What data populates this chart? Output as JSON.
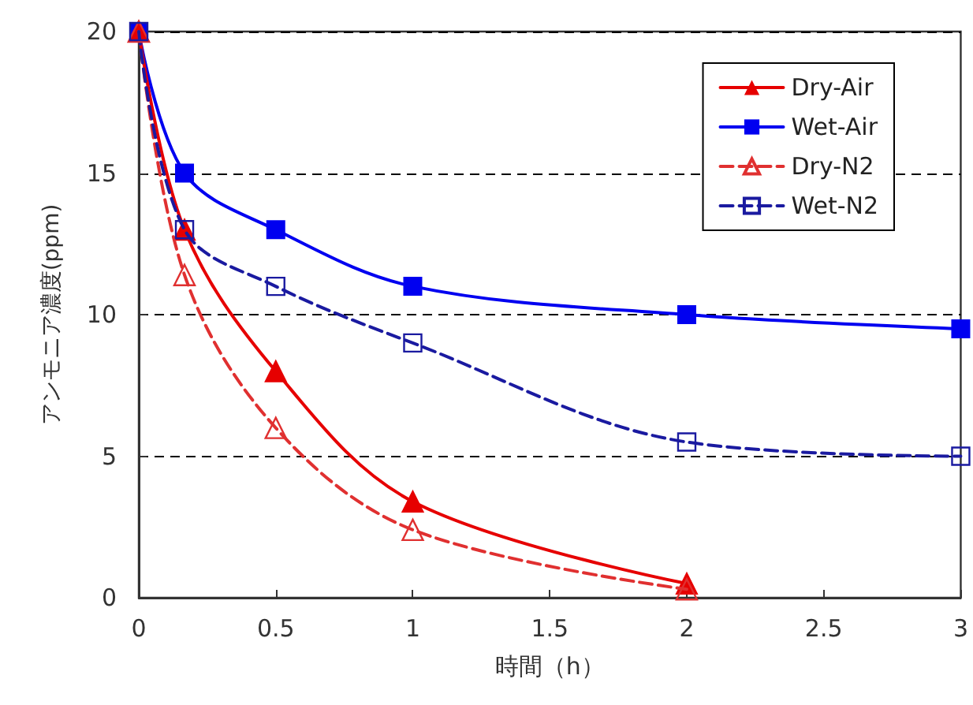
{
  "chart_data": {
    "type": "line",
    "xlabel": "時間（h）",
    "ylabel": "アンモニア濃度(ppm)",
    "xlim": [
      0,
      3
    ],
    "xticks": [
      0,
      0.5,
      1,
      1.5,
      2,
      2.5,
      3
    ],
    "ylim": [
      0,
      20
    ],
    "yticks": [
      0,
      5,
      10,
      15,
      20
    ],
    "grid": "y",
    "legend": "top right",
    "series": [
      {
        "name": "Dry-Air",
        "color": "#e60000",
        "marker": "triangle",
        "line_style": "solid",
        "x": [
          0,
          0.167,
          0.5,
          1,
          2
        ],
        "values": [
          20,
          13,
          8,
          3.4,
          0.5
        ]
      },
      {
        "name": "Wet-Air",
        "color": "#0000f0",
        "marker": "square",
        "line_style": "solid",
        "x": [
          0,
          0.167,
          0.5,
          1,
          2,
          3
        ],
        "values": [
          20,
          15,
          13,
          11,
          10,
          9.5
        ]
      },
      {
        "name": "Dry-N2",
        "color": "#e03030",
        "marker": "triangle",
        "line_style": "dashed",
        "x": [
          0,
          0.167,
          0.5,
          1,
          2
        ],
        "values": [
          20,
          11.4,
          6,
          2.4,
          0.3
        ]
      },
      {
        "name": "Wet-N2",
        "color": "#1a1aa0",
        "marker": "square",
        "line_style": "dashed",
        "x": [
          0,
          0.167,
          0.5,
          1,
          2,
          3
        ],
        "values": [
          20,
          13,
          11,
          9,
          5.5,
          5
        ]
      }
    ]
  }
}
